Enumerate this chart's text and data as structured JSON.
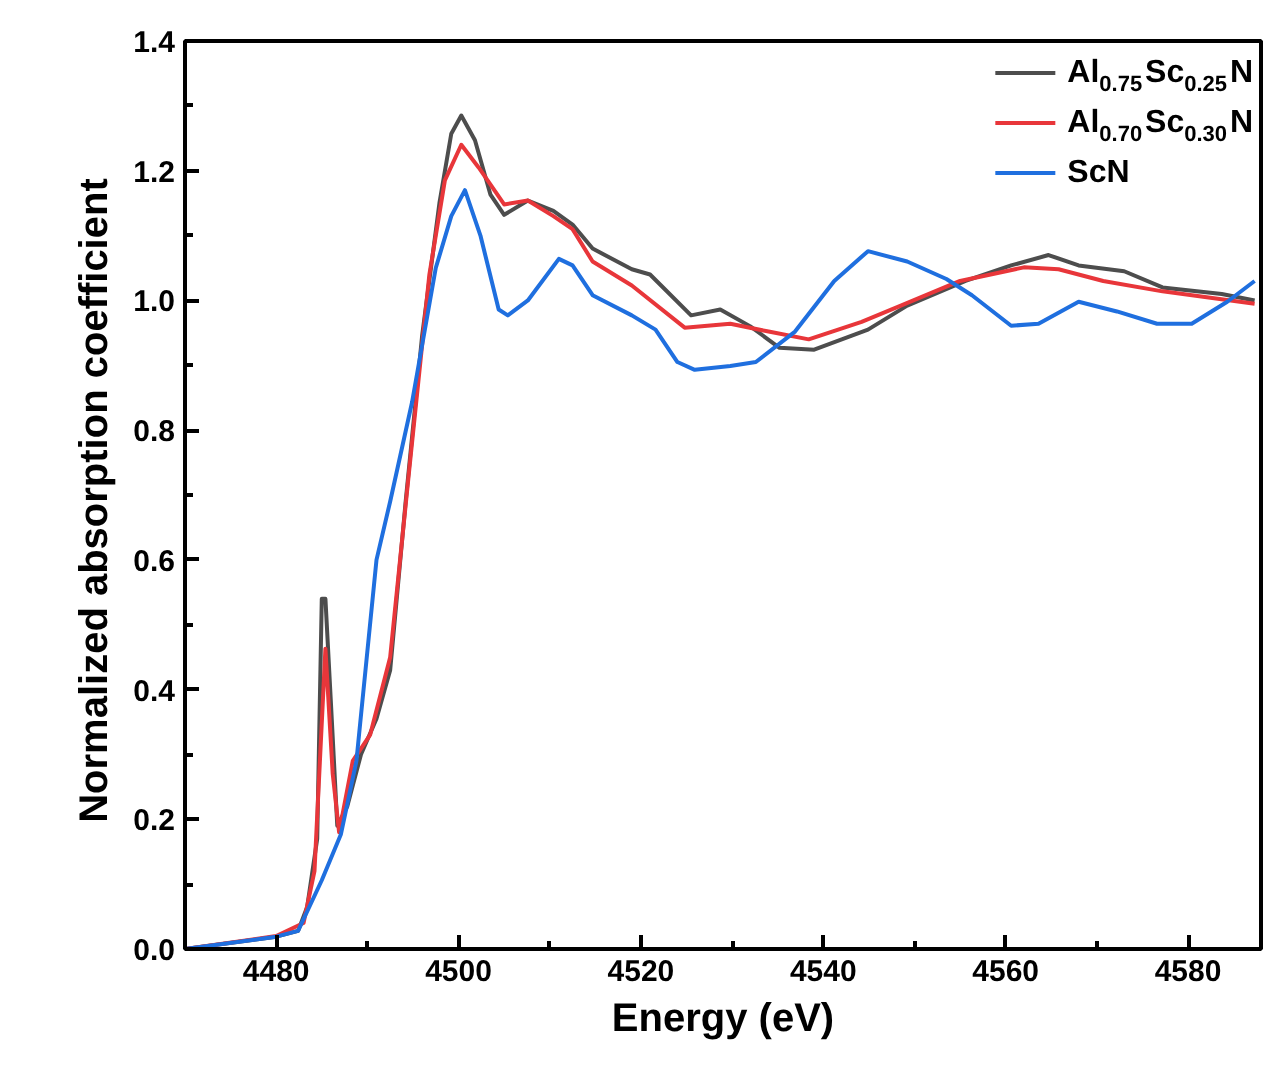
{
  "chart_data": {
    "type": "line",
    "xlabel": "Energy (eV)",
    "ylabel": "Normalized  absorption coefficient",
    "xlim": [
      4470,
      4588
    ],
    "ylim": [
      0,
      1.4
    ],
    "xticks": [
      4480,
      4500,
      4520,
      4540,
      4560,
      4580
    ],
    "yticks": [
      {
        "value": 0,
        "label": "0.0"
      },
      0.2,
      0.4,
      0.6,
      0.8,
      {
        "value": 1,
        "label": "1.0"
      },
      1.2,
      1.4
    ],
    "grid": false,
    "legend": "top right",
    "line_style": "solid",
    "marker": "none",
    "series": [
      {
        "name": "Al$_{0.75}$Sc$_{0.25}$N",
        "color": "#4d4d4d",
        "x": [
          4470,
          4480,
          4482.4,
          4483.4,
          4484.5,
          4485,
          4485.4,
          4486,
          4486.7,
          4487.8,
          4489.3,
          4491,
          4492.5,
          4494.2,
          4496,
          4497.9,
          4499.2,
          4500.3,
          4501.8,
          4503.5,
          4505,
          4507.6,
          4510.4,
          4512.5,
          4514.7,
          4519,
          4521,
          4525.5,
          4528.7,
          4532,
          4535.2,
          4539,
          4544.9,
          4549.2,
          4555.6,
          4560.6,
          4564.7,
          4568,
          4573,
          4577.2,
          4583.7,
          4587.3
        ],
        "values": [
          0,
          0.019,
          0.028,
          0.065,
          0.17,
          0.54,
          0.54,
          0.38,
          0.19,
          0.22,
          0.3,
          0.355,
          0.43,
          0.69,
          0.945,
          1.15,
          1.257,
          1.285,
          1.247,
          1.163,
          1.132,
          1.154,
          1.138,
          1.117,
          1.08,
          1.048,
          1.04,
          0.977,
          0.986,
          0.96,
          0.927,
          0.924,
          0.955,
          0.992,
          1.03,
          1.054,
          1.07,
          1.054,
          1.045,
          1.02,
          1.01,
          1.0
        ]
      },
      {
        "name": "Al$_{0.70}$Sc$_{0.30}$N",
        "color": "#e8363a",
        "x": [
          4470,
          4480,
          4483,
          4484.2,
          4485.4,
          4486.2,
          4486.9,
          4488.4,
          4490.3,
          4492.5,
          4494.6,
          4496.8,
          4498.5,
          4500.3,
          4502.2,
          4505,
          4507.6,
          4510.4,
          4512.5,
          4514.7,
          4519,
          4524.8,
          4529.8,
          4534,
          4538.4,
          4544.2,
          4548.5,
          4555,
          4562,
          4565.8,
          4570.7,
          4577.2,
          4587.3
        ],
        "values": [
          0,
          0.02,
          0.04,
          0.12,
          0.463,
          0.27,
          0.18,
          0.29,
          0.33,
          0.45,
          0.74,
          1.04,
          1.185,
          1.24,
          1.205,
          1.148,
          1.154,
          1.13,
          1.11,
          1.06,
          1.023,
          0.958,
          0.964,
          0.952,
          0.94,
          0.967,
          0.992,
          1.03,
          1.051,
          1.048,
          1.03,
          1.014,
          0.995
        ]
      },
      {
        "name": "ScN",
        "color": "#1f6fdf",
        "x": [
          4470,
          4480,
          4482.4,
          4485,
          4487.1,
          4488.8,
          4491,
          4492.5,
          4494.9,
          4497.5,
          4499.2,
          4500.7,
          4502.4,
          4504.4,
          4505.4,
          4507.6,
          4511,
          4512.5,
          4514.7,
          4519,
          4521.6,
          4524,
          4525.9,
          4529.8,
          4532.6,
          4536.9,
          4541.2,
          4544.9,
          4549.2,
          4553.5,
          4556.3,
          4560.6,
          4563.6,
          4568,
          4572.2,
          4576.6,
          4580.4,
          4584.3,
          4587.3
        ],
        "values": [
          0,
          0.019,
          0.028,
          0.106,
          0.177,
          0.29,
          0.6,
          0.69,
          0.843,
          1.05,
          1.13,
          1.17,
          1.1,
          0.986,
          0.977,
          1.0,
          1.064,
          1.054,
          1.008,
          0.977,
          0.955,
          0.905,
          0.893,
          0.899,
          0.905,
          0.952,
          1.03,
          1.076,
          1.06,
          1.033,
          1.008,
          0.961,
          0.964,
          0.998,
          0.983,
          0.964,
          0.964,
          0.998,
          1.03
        ]
      }
    ]
  }
}
